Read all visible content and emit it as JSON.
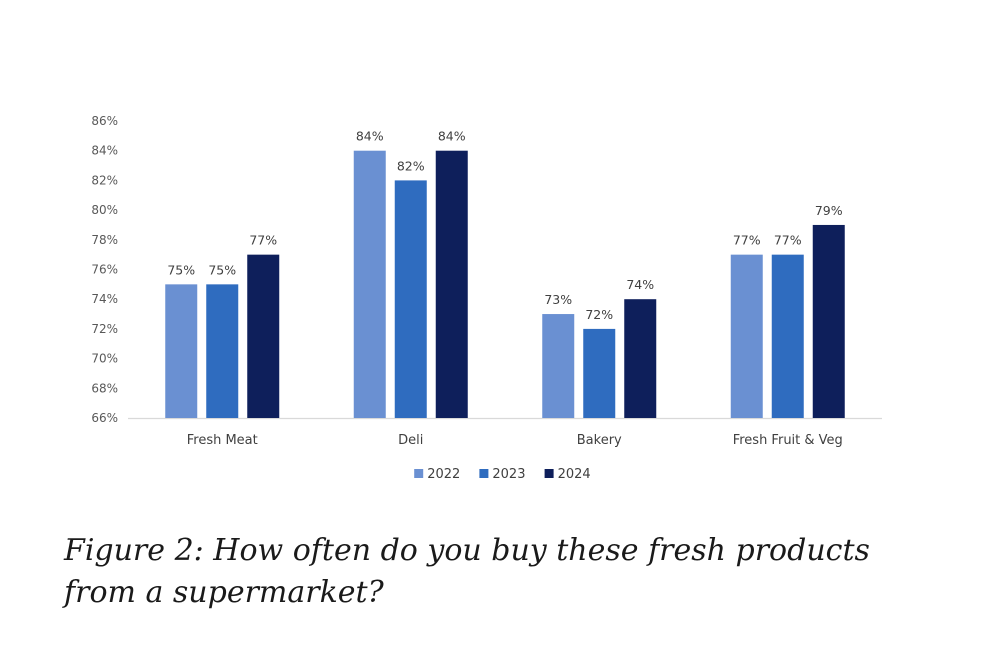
{
  "caption": "Figure 2: How often do you buy these fresh products from a supermarket?",
  "colors": {
    "2022": "#6a90d2",
    "2023": "#2f6cbf",
    "2024": "#0e1f5b",
    "axis": "#d9d9d9",
    "text": "#595959"
  },
  "chart_data": {
    "type": "bar",
    "categories": [
      "Fresh Meat",
      "Deli",
      "Bakery",
      "Fresh Fruit & Veg"
    ],
    "series": [
      {
        "name": "2022",
        "values": [
          75,
          84,
          73,
          77
        ],
        "labels": [
          "75%",
          "84%",
          "73%",
          "77%"
        ]
      },
      {
        "name": "2023",
        "values": [
          75,
          82,
          72,
          77
        ],
        "labels": [
          "75%",
          "82%",
          "72%",
          "77%"
        ]
      },
      {
        "name": "2024",
        "values": [
          77,
          84,
          74,
          79
        ],
        "labels": [
          "77%",
          "84%",
          "74%",
          "79%"
        ]
      }
    ],
    "ylim": [
      66,
      86
    ],
    "yticks": [
      "66%",
      "68%",
      "70%",
      "72%",
      "74%",
      "76%",
      "78%",
      "80%",
      "82%",
      "84%",
      "86%"
    ],
    "legend_position": "bottom",
    "grid": false
  }
}
